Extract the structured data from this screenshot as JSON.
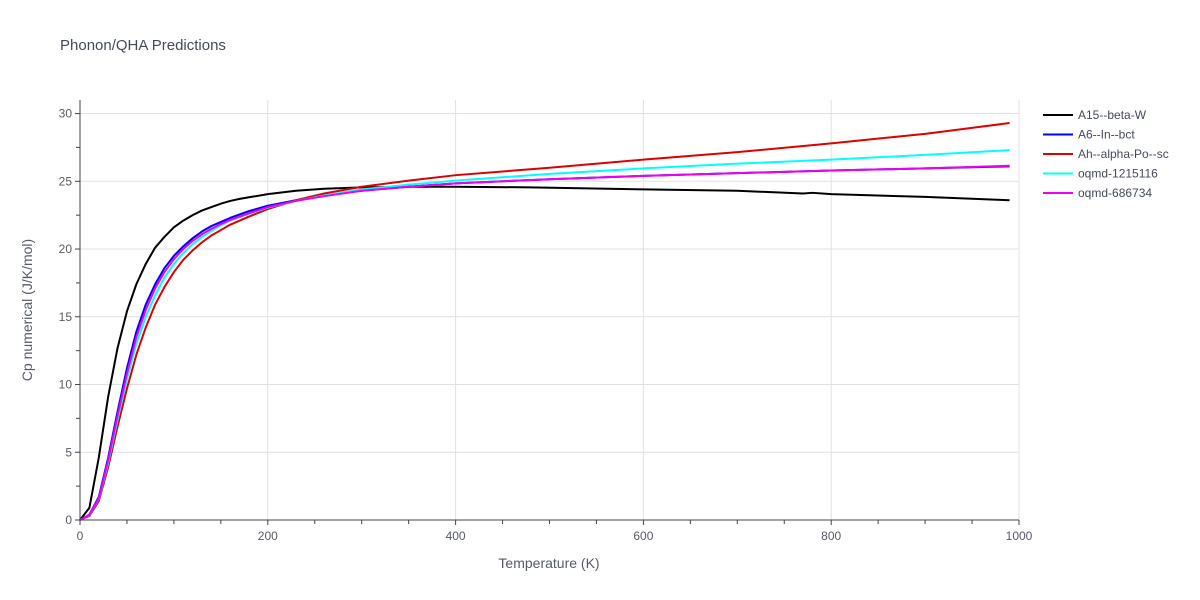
{
  "chart_data": {
    "type": "line",
    "title": "Phonon/QHA Predictions",
    "xlabel": "Temperature (K)",
    "ylabel": "Cp numerical (J/K/mol)",
    "xlim": [
      0,
      1000
    ],
    "ylim": [
      0,
      31
    ],
    "xticks": [
      0,
      200,
      400,
      600,
      800,
      1000
    ],
    "yticks": [
      0,
      5,
      10,
      15,
      20,
      25,
      30
    ],
    "grid": true,
    "legend_position": "right",
    "series": [
      {
        "name": "A15--beta-W",
        "color": "#000000",
        "x": [
          0,
          10,
          20,
          30,
          40,
          50,
          60,
          70,
          80,
          90,
          100,
          110,
          120,
          130,
          140,
          150,
          160,
          170,
          180,
          200,
          230,
          260,
          300,
          350,
          400,
          480,
          600,
          700,
          770,
          780,
          800,
          900,
          990
        ],
        "y": [
          0,
          0.9,
          4.6,
          9.1,
          12.7,
          15.4,
          17.4,
          18.9,
          20.1,
          20.9,
          21.6,
          22.1,
          22.5,
          22.85,
          23.1,
          23.35,
          23.55,
          23.7,
          23.82,
          24.05,
          24.3,
          24.45,
          24.55,
          24.6,
          24.6,
          24.55,
          24.4,
          24.3,
          24.1,
          24.15,
          24.05,
          23.85,
          23.6
        ]
      },
      {
        "name": "A6--In--bct",
        "color": "#0000ff",
        "x": [
          0,
          10,
          20,
          30,
          40,
          50,
          60,
          70,
          80,
          90,
          100,
          110,
          120,
          130,
          140,
          150,
          160,
          180,
          200,
          230,
          260,
          300,
          350,
          400,
          500,
          600,
          700,
          800,
          900,
          990
        ],
        "y": [
          0,
          0.4,
          1.7,
          4.6,
          8.0,
          11.2,
          13.9,
          15.9,
          17.4,
          18.6,
          19.5,
          20.2,
          20.8,
          21.3,
          21.7,
          22.0,
          22.3,
          22.8,
          23.2,
          23.6,
          23.95,
          24.3,
          24.6,
          24.85,
          25.15,
          25.4,
          25.6,
          25.8,
          25.95,
          26.1
        ]
      },
      {
        "name": "Ah--alpha-Po--sc",
        "color": "#dd0000",
        "x": [
          0,
          10,
          20,
          30,
          40,
          50,
          60,
          70,
          80,
          90,
          100,
          110,
          120,
          130,
          140,
          150,
          160,
          180,
          200,
          230,
          260,
          300,
          350,
          400,
          500,
          600,
          700,
          800,
          900,
          990
        ],
        "y": [
          0,
          0.3,
          1.4,
          3.9,
          6.9,
          9.7,
          12.2,
          14.2,
          15.9,
          17.2,
          18.3,
          19.2,
          19.9,
          20.5,
          21.0,
          21.4,
          21.8,
          22.4,
          22.95,
          23.6,
          24.1,
          24.6,
          25.05,
          25.45,
          26.0,
          26.6,
          27.15,
          27.8,
          28.5,
          29.3
        ]
      },
      {
        "name": "oqmd-1215116",
        "color": "#00ffff",
        "x": [
          0,
          10,
          20,
          30,
          40,
          50,
          60,
          70,
          80,
          90,
          100,
          110,
          120,
          130,
          140,
          150,
          160,
          180,
          200,
          230,
          260,
          300,
          350,
          400,
          500,
          600,
          700,
          800,
          900,
          990
        ],
        "y": [
          0,
          0.35,
          1.55,
          4.2,
          7.4,
          10.4,
          13.0,
          15.0,
          16.6,
          17.9,
          18.9,
          19.7,
          20.35,
          20.9,
          21.35,
          21.75,
          22.1,
          22.6,
          23.05,
          23.55,
          23.95,
          24.4,
          24.75,
          25.05,
          25.55,
          25.95,
          26.3,
          26.6,
          26.95,
          27.3
        ]
      },
      {
        "name": "oqmd-686734",
        "color": "#ee00ee",
        "x": [
          0,
          10,
          20,
          30,
          40,
          50,
          60,
          70,
          80,
          90,
          100,
          110,
          120,
          130,
          140,
          150,
          160,
          180,
          200,
          230,
          260,
          300,
          350,
          400,
          500,
          600,
          700,
          800,
          900,
          990
        ],
        "y": [
          0,
          0.38,
          1.6,
          4.4,
          7.7,
          10.8,
          13.5,
          15.5,
          17.1,
          18.3,
          19.25,
          20.0,
          20.6,
          21.1,
          21.5,
          21.85,
          22.15,
          22.65,
          23.1,
          23.55,
          23.9,
          24.3,
          24.6,
          24.85,
          25.15,
          25.4,
          25.6,
          25.8,
          25.95,
          26.15
        ]
      }
    ]
  }
}
